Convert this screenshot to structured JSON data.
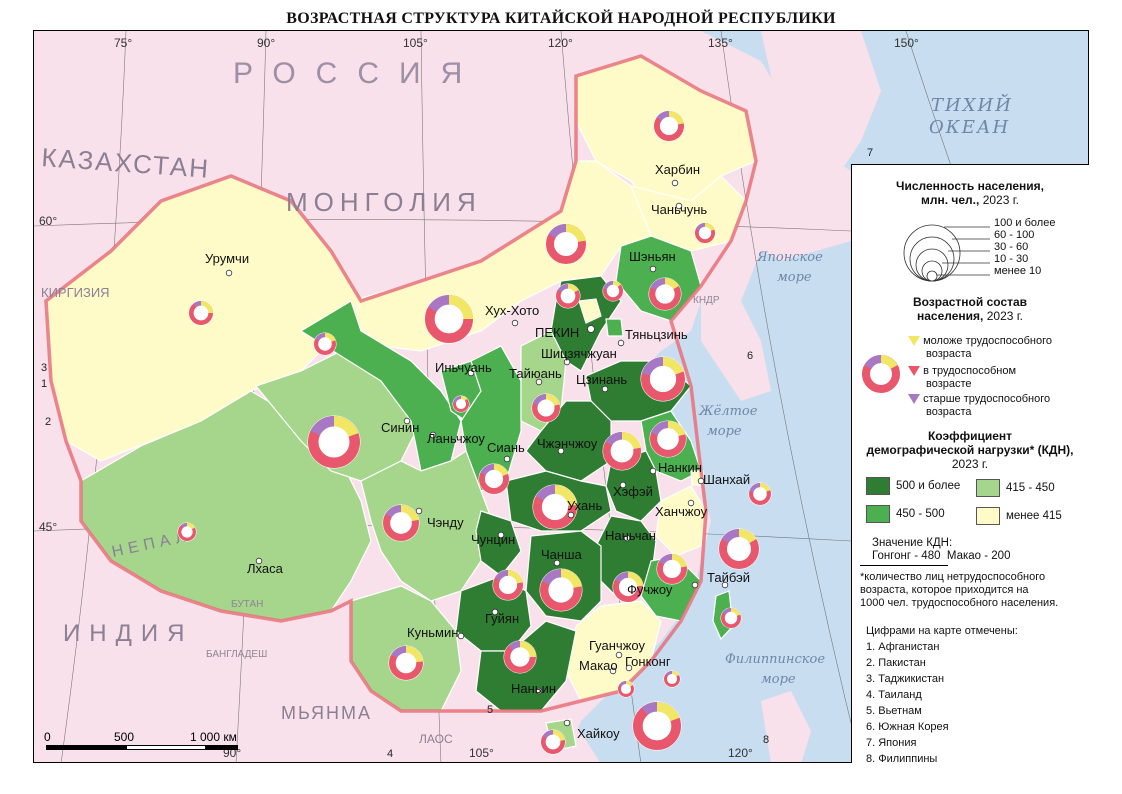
{
  "title": "ВОЗРАСТНАЯ СТРУКТУРА КИТАЙСКОЙ НАРОДНОЙ РЕСПУБЛИКИ",
  "colors": {
    "sea": "#c8ddf0",
    "foreign_land": "#f8e1ea",
    "class_high": "#2e7d32",
    "class_mid_high": "#4caf50",
    "class_mid_low": "#a5d68b",
    "class_low": "#fffbc8",
    "border_china": "#e8707a",
    "ring_young": "#f2e765",
    "ring_working": "#e8576b",
    "ring_old": "#a978c4"
  },
  "grid_labels": {
    "lon_75": "75°",
    "lon_90": "90°",
    "lon_105": "105°",
    "lon_120": "120°",
    "lon_135": "135°",
    "lon_150": "150°",
    "lat_60": "60°",
    "lat_45": "45°",
    "lon_90_b": "90°",
    "lon_105_b": "105°",
    "lon_120_b": "120°"
  },
  "countries": {
    "russia": "РОССИЯ",
    "kazakhstan": "КАЗАХСТАН",
    "mongolia": "МОНГОЛИЯ",
    "kyrgyzstan": "КИРГИЗИЯ",
    "nepal": "НЕПАЛ",
    "india": "ИНДИЯ",
    "bhutan": "БУТАН",
    "bangladesh": "БАНГЛАДЕШ",
    "myanmar": "МЬЯНМА",
    "laos": "ЛАОС",
    "dprk": "КНДР"
  },
  "seas": {
    "pacific_1": "ТИХИЙ",
    "pacific_2": "ОКЕАН",
    "japan_sea_1": "Японское",
    "japan_sea_2": "море",
    "yellow_sea_1": "Жёлтое",
    "yellow_sea_2": "море",
    "philippine_1": "Филиппинское",
    "philippine_2": "море"
  },
  "numbers": {
    "n1": "1",
    "n2": "2",
    "n3": "3",
    "n4": "4",
    "n5": "5",
    "n6": "6",
    "n7": "7",
    "n8": "8"
  },
  "cities": {
    "harbin": "Харбин",
    "changchun": "Чаньчунь",
    "shenyang": "Шэньян",
    "urumqi": "Урумчи",
    "hohhot": "Хух-Хото",
    "beijing": "ПЕКИН",
    "tianjin": "Тяньцзинь",
    "shijiazhuang": "Шицзячжуан",
    "yinchuan": "Иньчуань",
    "taiyuan": "Тайюань",
    "jinan": "Цзинань",
    "xining": "Синин",
    "lanzhou": "Ланьчжоу",
    "xian": "Сиань",
    "zhengzhou": "Чжэнчжоу",
    "nanjing": "Нанкин",
    "shanghai": "Шанхай",
    "hefei": "Хэфэй",
    "wuhan": "Ухань",
    "hangzhou": "Ханчжоу",
    "chengdu": "Чэнду",
    "chongqing": "Чунцин",
    "nanchang": "Наньчан",
    "lhasa": "Лхаса",
    "changsha": "Чанша",
    "taipei": "Тайбэй",
    "fuzhou": "Фучжоу",
    "guiyang": "Гуйян",
    "kunming": "Куньмин",
    "guangzhou": "Гуанчжоу",
    "macau": "Макао",
    "hongkong": "Гонконг",
    "nanning": "Наньин",
    "haikou": "Хайкоу"
  },
  "regions": [
    {
      "id": "heilongjiang",
      "class": "low"
    },
    {
      "id": "jilin",
      "class": "low"
    },
    {
      "id": "liaoning",
      "class": "mid_high"
    },
    {
      "id": "inner_mongolia",
      "class": "low"
    },
    {
      "id": "xinjiang",
      "class": "low"
    },
    {
      "id": "tibet",
      "class": "mid_low"
    },
    {
      "id": "qinghai",
      "class": "mid_low"
    },
    {
      "id": "gansu",
      "class": "mid_high"
    },
    {
      "id": "ningxia",
      "class": "mid_high"
    },
    {
      "id": "shaanxi",
      "class": "mid_high"
    },
    {
      "id": "shanxi",
      "class": "mid_low"
    },
    {
      "id": "hebei",
      "class": "high"
    },
    {
      "id": "beijing",
      "class": "low"
    },
    {
      "id": "tianjin",
      "class": "mid_high"
    },
    {
      "id": "shandong",
      "class": "high"
    },
    {
      "id": "henan",
      "class": "high"
    },
    {
      "id": "jiangsu",
      "class": "mid_high"
    },
    {
      "id": "shanghai",
      "class": "low"
    },
    {
      "id": "anhui",
      "class": "high"
    },
    {
      "id": "hubei",
      "class": "high"
    },
    {
      "id": "zhejiang",
      "class": "low"
    },
    {
      "id": "sichuan",
      "class": "mid_low"
    },
    {
      "id": "chongqing",
      "class": "high"
    },
    {
      "id": "jiangxi",
      "class": "high"
    },
    {
      "id": "hunan",
      "class": "high"
    },
    {
      "id": "fujian",
      "class": "mid_high"
    },
    {
      "id": "guizhou",
      "class": "high"
    },
    {
      "id": "yunnan",
      "class": "mid_low"
    },
    {
      "id": "guangdong",
      "class": "low"
    },
    {
      "id": "guangxi",
      "class": "high"
    },
    {
      "id": "hainan",
      "class": "mid_low"
    },
    {
      "id": "taiwan",
      "class": "mid_high"
    }
  ],
  "legend": {
    "pop_title_1": "Численность населения,",
    "pop_title_2": "млн. чел.,",
    "pop_title_year": "2023 г.",
    "pop_classes": [
      "100 и более",
      "60 - 100",
      "30 - 60",
      "10 - 30",
      "менее 10"
    ],
    "age_title_1": "Возрастной состав",
    "age_title_2": "населения,",
    "age_title_year": "2023 г.",
    "age_young_1": "моложе трудоспособного",
    "age_young_2": "возраста",
    "age_working_1": "в трудоспособном",
    "age_working_2": "возрасте",
    "age_old_1": "старше трудоспособного",
    "age_old_2": "возраста",
    "kdn_title_1": "Коэффициент",
    "kdn_title_2": "демографической нагрузки* (КДН),",
    "kdn_title_3": "2023 г.",
    "kdn_classes": [
      "500 и более",
      "450 - 500",
      "415 - 450",
      "менее 415"
    ],
    "kdn_value_title": "Значение КДН:",
    "kdn_values": "Гонгонг - 480  Макао - 200",
    "footnote_1": "*количество лиц нетрудоспособного",
    "footnote_2": "возраста, которое приходится на",
    "footnote_3": "1000 чел. трудоспособного населения.",
    "numbers_title": "Цифрами на карте отмечены:",
    "numbers_list": [
      "1. Афганистан",
      "2. Пакистан",
      "3. Таджикистан",
      "4. Таиланд",
      "5. Вьетнам",
      "6. Южная Корея",
      "7. Япония",
      "8. Филиппины"
    ]
  },
  "scale": {
    "zero": "0",
    "mid": "500",
    "end": "1 000 км"
  }
}
